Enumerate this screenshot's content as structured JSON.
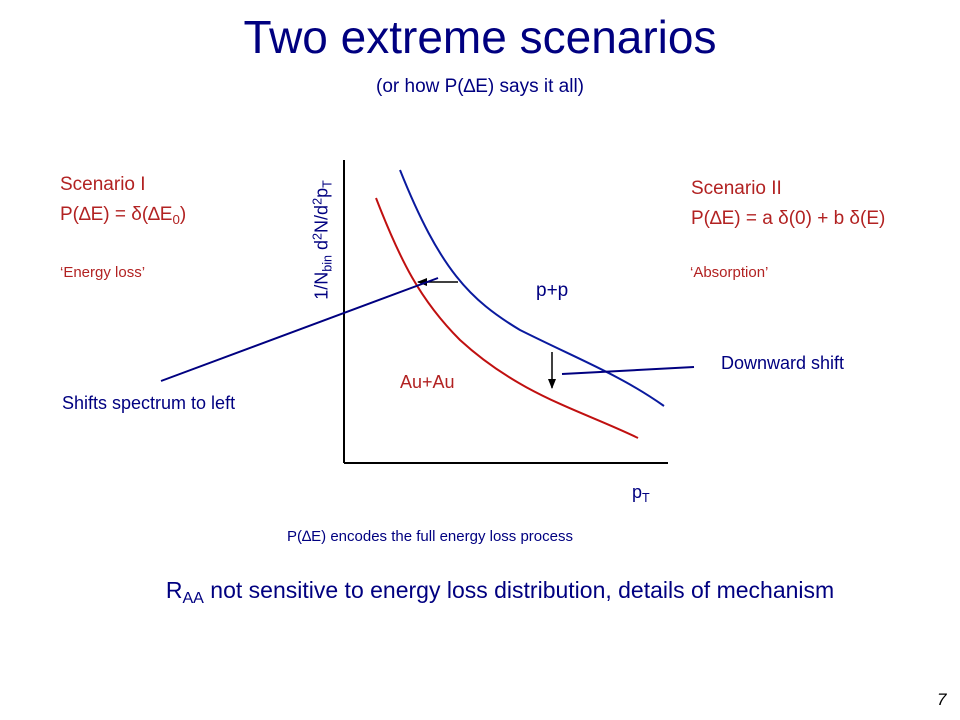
{
  "title": "Two extreme scenarios",
  "subtitle": "(or how P(∆E) says it all)",
  "scenario1": {
    "name": "Scenario I",
    "formula_prefix": "P(∆E) = δ(∆E",
    "formula_sub": "0",
    "formula_suffix": ")",
    "quote": "‘Energy loss’",
    "effect": "Shifts spectrum to left"
  },
  "scenario2": {
    "name": "Scenario II",
    "formula": "P(∆E) = a δ(0) + b δ(E)",
    "quote": "‘Absorption’",
    "effect": "Downward shift"
  },
  "plot": {
    "ylabel": {
      "pre": "1/N",
      "bin": "bin",
      "mid1": " d",
      "sup1": "2",
      "mid2": "N/d",
      "sup2": "2",
      "mid3": "p",
      "subT": "T"
    },
    "xlabel": {
      "main": "p",
      "sub": "T"
    },
    "curve_pp": "p+p",
    "curve_auau": "Au+Au",
    "colors": {
      "pp": "#0a1a9e",
      "auau": "#c01010",
      "axis": "#000000",
      "pointer": "#000080"
    }
  },
  "caption": "P(∆E) encodes the full energy loss process",
  "conclusion": {
    "main": "R",
    "sub": "AA",
    "rest": " not sensitive to energy loss distribution, details of mechanism"
  },
  "page_number": "7"
}
